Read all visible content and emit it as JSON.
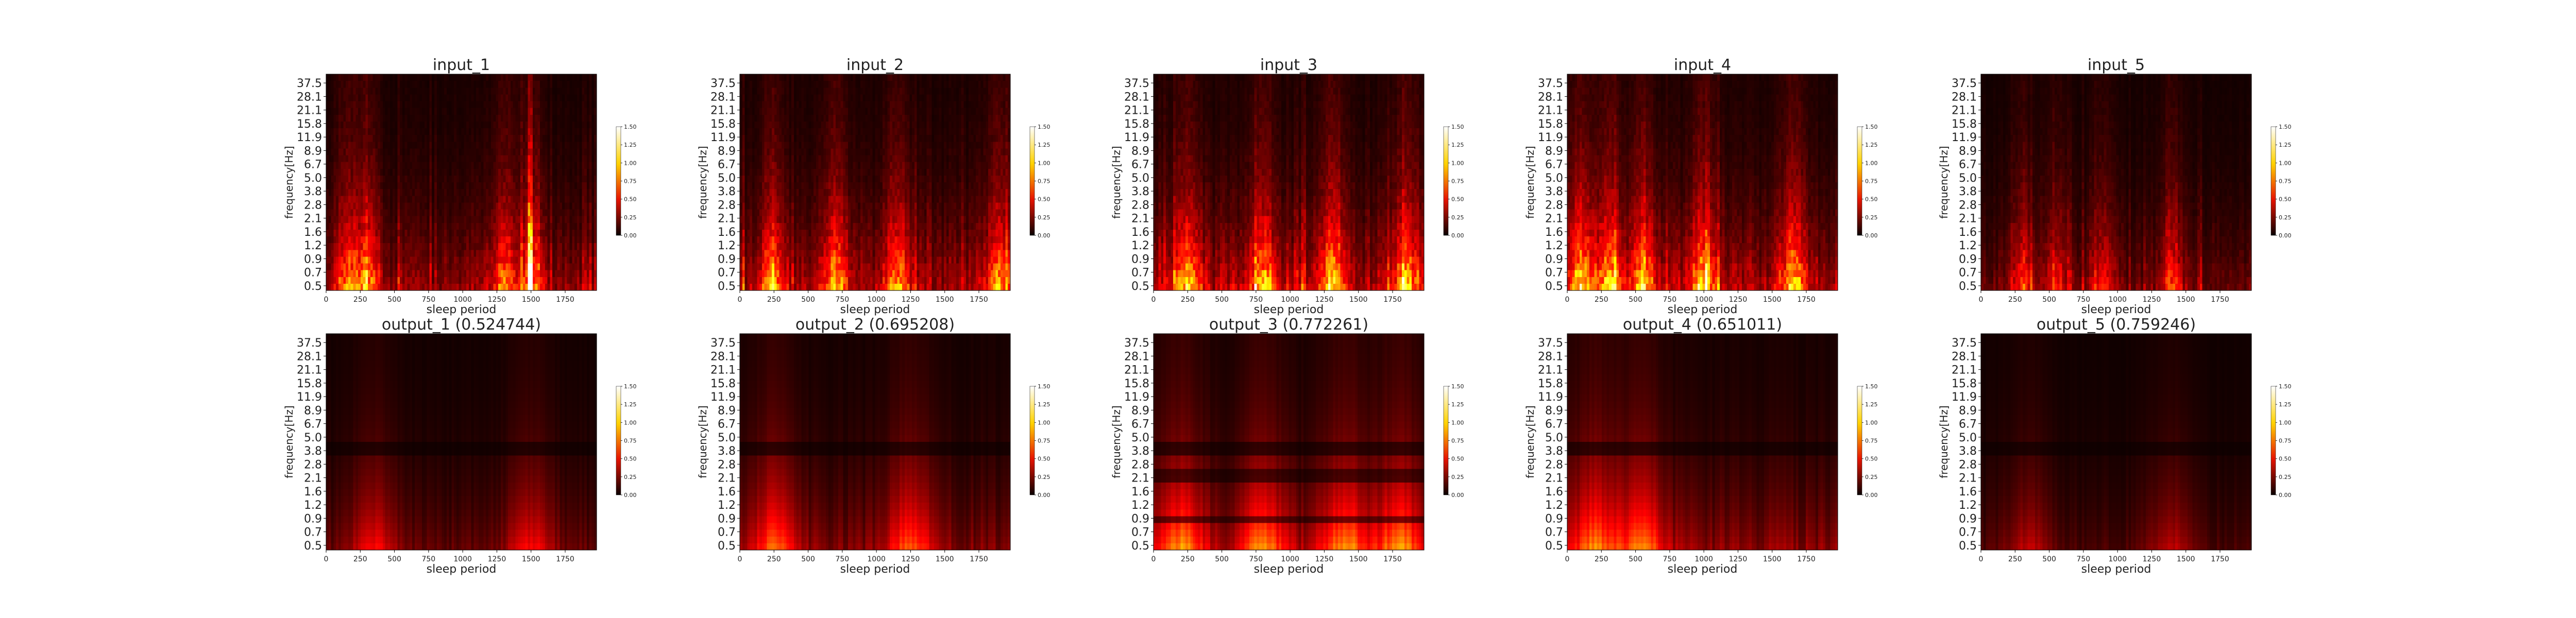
{
  "figure": {
    "layout": "2 rows x 5 columns",
    "colormap": "hot"
  },
  "chart_data": [
    {
      "type": "heatmap",
      "title": "input_1",
      "xlabel": "sleep period",
      "ylabel": "frequency[Hz]",
      "x_ticks": [
        "0",
        "250",
        "500",
        "750",
        "1000",
        "1250",
        "1500",
        "1750"
      ],
      "y_ticks": [
        "37.5",
        "28.1",
        "21.1",
        "15.8",
        "11.9",
        "8.9",
        "6.7",
        "5.0",
        "3.8",
        "2.8",
        "2.1",
        "1.6",
        "1.2",
        "0.9",
        "0.7",
        "0.5"
      ],
      "xlim": [
        0,
        1980
      ],
      "colorbar": {
        "ticks": [
          "0.00",
          "0.25",
          "0.50",
          "0.75",
          "1.00",
          "1.25",
          "1.50"
        ],
        "range": [
          0,
          1.5
        ]
      },
      "peaks": [
        150,
        300,
        1300,
        1500
      ],
      "intensity": 0.8,
      "spike_at": 1500
    },
    {
      "type": "heatmap",
      "title": "input_2",
      "xlabel": "sleep period",
      "ylabel": "frequency[Hz]",
      "x_ticks": [
        "0",
        "250",
        "500",
        "750",
        "1000",
        "1250",
        "1500",
        "1750"
      ],
      "y_ticks": [
        "37.5",
        "28.1",
        "21.1",
        "15.8",
        "11.9",
        "8.9",
        "6.7",
        "5.0",
        "3.8",
        "2.8",
        "2.1",
        "1.6",
        "1.2",
        "0.9",
        "0.7",
        "0.5"
      ],
      "xlim": [
        0,
        1980
      ],
      "colorbar": {
        "ticks": [
          "0.00",
          "0.25",
          "0.50",
          "0.75",
          "1.00",
          "1.25",
          "1.50"
        ],
        "range": [
          0,
          1.5
        ]
      },
      "peaks": [
        250,
        700,
        1150,
        1900
      ],
      "intensity": 0.9
    },
    {
      "type": "heatmap",
      "title": "input_3",
      "xlabel": "sleep period",
      "ylabel": "frequency[Hz]",
      "x_ticks": [
        "0",
        "250",
        "500",
        "750",
        "1000",
        "1250",
        "1500",
        "1750"
      ],
      "y_ticks": [
        "37.5",
        "28.1",
        "21.1",
        "15.8",
        "11.9",
        "8.9",
        "6.7",
        "5.0",
        "3.8",
        "2.8",
        "2.1",
        "1.6",
        "1.2",
        "0.9",
        "0.7",
        "0.5"
      ],
      "xlim": [
        0,
        1980
      ],
      "colorbar": {
        "ticks": [
          "0.00",
          "0.25",
          "0.50",
          "0.75",
          "1.00",
          "1.25",
          "1.50"
        ],
        "range": [
          0,
          1.5
        ]
      },
      "peaks": [
        250,
        800,
        1300,
        1850
      ],
      "intensity": 1.0
    },
    {
      "type": "heatmap",
      "title": "input_4",
      "xlabel": "sleep period",
      "ylabel": "frequency[Hz]",
      "x_ticks": [
        "0",
        "250",
        "500",
        "750",
        "1000",
        "1250",
        "1500",
        "1750"
      ],
      "y_ticks": [
        "37.5",
        "28.1",
        "21.1",
        "15.8",
        "11.9",
        "8.9",
        "6.7",
        "5.0",
        "3.8",
        "2.8",
        "2.1",
        "1.6",
        "1.2",
        "0.9",
        "0.7",
        "0.5"
      ],
      "xlim": [
        0,
        1980
      ],
      "colorbar": {
        "ticks": [
          "0.00",
          "0.25",
          "0.50",
          "0.75",
          "1.00",
          "1.25",
          "1.50"
        ],
        "range": [
          0,
          1.5
        ]
      },
      "peaks": [
        100,
        300,
        550,
        1000,
        1650
      ],
      "intensity": 1.0
    },
    {
      "type": "heatmap",
      "title": "input_5",
      "xlabel": "sleep period",
      "ylabel": "frequency[Hz]",
      "x_ticks": [
        "0",
        "250",
        "500",
        "750",
        "1000",
        "1250",
        "1500",
        "1750"
      ],
      "y_ticks": [
        "37.5",
        "28.1",
        "21.1",
        "15.8",
        "11.9",
        "8.9",
        "6.7",
        "5.0",
        "3.8",
        "2.8",
        "2.1",
        "1.6",
        "1.2",
        "0.9",
        "0.7",
        "0.5"
      ],
      "xlim": [
        0,
        1980
      ],
      "colorbar": {
        "ticks": [
          "0.00",
          "0.25",
          "0.50",
          "0.75",
          "1.00",
          "1.25",
          "1.50"
        ],
        "range": [
          0,
          1.5
        ]
      },
      "peaks": [
        300,
        550,
        900,
        1400
      ],
      "intensity": 0.55
    },
    {
      "type": "heatmap",
      "title": "output_1 (0.524744)",
      "xlabel": "sleep period",
      "ylabel": "frequency[Hz]",
      "x_ticks": [
        "0",
        "250",
        "500",
        "750",
        "1000",
        "1250",
        "1500",
        "1750"
      ],
      "y_ticks": [
        "37.5",
        "28.1",
        "21.1",
        "15.8",
        "11.9",
        "8.9",
        "6.7",
        "5.0",
        "3.8",
        "2.8",
        "2.1",
        "1.6",
        "1.2",
        "0.9",
        "0.7",
        "0.5"
      ],
      "xlim": [
        0,
        1980
      ],
      "colorbar": {
        "ticks": [
          "0.00",
          "0.25",
          "0.50",
          "0.75",
          "1.00",
          "1.25",
          "1.50"
        ],
        "range": [
          0,
          1.5
        ]
      },
      "peaks": [
        350,
        1500
      ],
      "intensity": 0.55
    },
    {
      "type": "heatmap",
      "title": "output_2 (0.695208)",
      "xlabel": "sleep period",
      "ylabel": "frequency[Hz]",
      "x_ticks": [
        "0",
        "250",
        "500",
        "750",
        "1000",
        "1250",
        "1500",
        "1750"
      ],
      "y_ticks": [
        "37.5",
        "28.1",
        "21.1",
        "15.8",
        "11.9",
        "8.9",
        "6.7",
        "5.0",
        "3.8",
        "2.8",
        "2.1",
        "1.6",
        "1.2",
        "0.9",
        "0.7",
        "0.5"
      ],
      "xlim": [
        0,
        1980
      ],
      "colorbar": {
        "ticks": [
          "0.00",
          "0.25",
          "0.50",
          "0.75",
          "1.00",
          "1.25",
          "1.50"
        ],
        "range": [
          0,
          1.5
        ]
      },
      "peaks": [
        250,
        1250
      ],
      "intensity": 0.75
    },
    {
      "type": "heatmap",
      "title": "output_3 (0.772261)",
      "xlabel": "sleep period",
      "ylabel": "frequency[Hz]",
      "x_ticks": [
        "0",
        "250",
        "500",
        "750",
        "1000",
        "1250",
        "1500",
        "1750"
      ],
      "y_ticks": [
        "37.5",
        "28.1",
        "21.1",
        "15.8",
        "11.9",
        "8.9",
        "6.7",
        "5.0",
        "3.8",
        "2.8",
        "2.1",
        "1.6",
        "1.2",
        "0.9",
        "0.7",
        "0.5"
      ],
      "xlim": [
        0,
        1980
      ],
      "colorbar": {
        "ticks": [
          "0.00",
          "0.25",
          "0.50",
          "0.75",
          "1.00",
          "1.25",
          "1.50"
        ],
        "range": [
          0,
          1.5
        ]
      },
      "peaks": [
        200,
        800,
        1400,
        1800
      ],
      "intensity": 0.9
    },
    {
      "type": "heatmap",
      "title": "output_4 (0.651011)",
      "xlabel": "sleep period",
      "ylabel": "frequency[Hz]",
      "x_ticks": [
        "0",
        "250",
        "500",
        "750",
        "1000",
        "1250",
        "1500",
        "1750"
      ],
      "y_ticks": [
        "37.5",
        "28.1",
        "21.1",
        "15.8",
        "11.9",
        "8.9",
        "6.7",
        "5.0",
        "3.8",
        "2.8",
        "2.1",
        "1.6",
        "1.2",
        "0.9",
        "0.7",
        "0.5"
      ],
      "xlim": [
        0,
        1980
      ],
      "colorbar": {
        "ticks": [
          "0.00",
          "0.25",
          "0.50",
          "0.75",
          "1.00",
          "1.25",
          "1.50"
        ],
        "range": [
          0,
          1.5
        ]
      },
      "peaks": [
        200,
        550
      ],
      "intensity": 0.85
    },
    {
      "type": "heatmap",
      "title": "output_5 (0.759246)",
      "xlabel": "sleep period",
      "ylabel": "frequency[Hz]",
      "x_ticks": [
        "0",
        "250",
        "500",
        "750",
        "1000",
        "1250",
        "1500",
        "1750"
      ],
      "y_ticks": [
        "37.5",
        "28.1",
        "21.1",
        "15.8",
        "11.9",
        "8.9",
        "6.7",
        "5.0",
        "3.8",
        "2.8",
        "2.1",
        "1.6",
        "1.2",
        "0.9",
        "0.7",
        "0.5"
      ],
      "xlim": [
        0,
        1980
      ],
      "colorbar": {
        "ticks": [
          "0.00",
          "0.25",
          "0.50",
          "0.75",
          "1.00",
          "1.25",
          "1.50"
        ],
        "range": [
          0,
          1.5
        ]
      },
      "peaks": [
        350,
        1400
      ],
      "intensity": 0.4
    }
  ]
}
